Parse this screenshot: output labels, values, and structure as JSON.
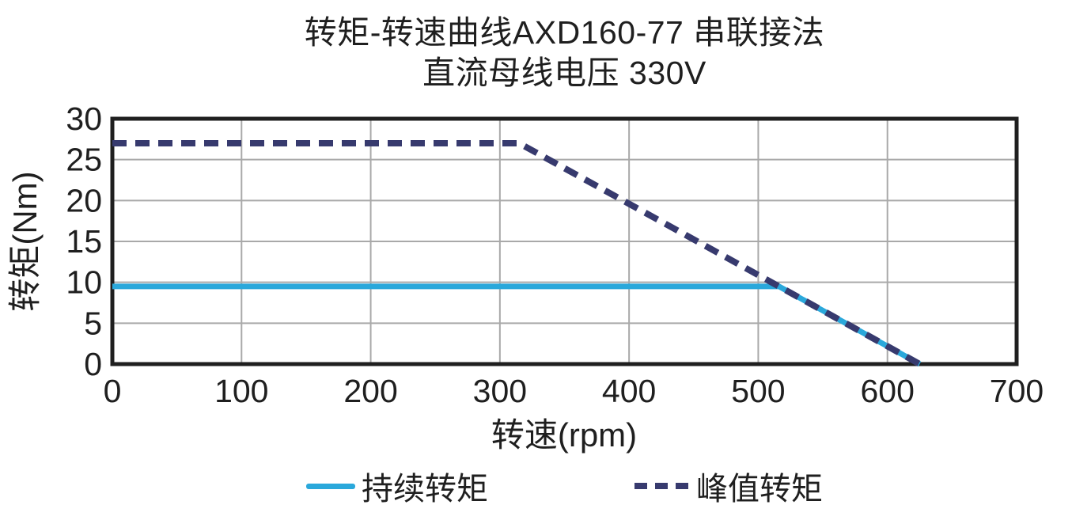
{
  "title": {
    "line1": "转矩-转速曲线AXD160-77 串联接法",
    "line2": "直流母线电压 330V"
  },
  "chart_data": {
    "type": "line",
    "title": "转矩-转速曲线AXD160-77 串联接法 直流母线电压 330V",
    "xlabel": "转速(rpm)",
    "ylabel": "转矩(Nm)",
    "xlim": [
      0,
      700
    ],
    "ylim": [
      0,
      30
    ],
    "x_ticks": [
      0,
      100,
      200,
      300,
      400,
      500,
      600,
      700
    ],
    "y_ticks": [
      0,
      5,
      10,
      15,
      20,
      25,
      30
    ],
    "grid": true,
    "legend_position": "bottom",
    "axis_color": "#1f1f1f",
    "grid_color": "#a9a9a9",
    "series": [
      {
        "id": "continuous-torque",
        "name": "持续转矩",
        "style": "solid",
        "color": "#2AA8DB",
        "width": 7,
        "points": [
          [
            0,
            9.5
          ],
          [
            516,
            9.5
          ],
          [
            625,
            0
          ]
        ]
      },
      {
        "id": "peak-torque",
        "name": "峰值转矩",
        "style": "dashed",
        "color": "#373A6E",
        "width": 8,
        "points": [
          [
            0,
            27
          ],
          [
            315,
            27
          ],
          [
            625,
            0
          ]
        ]
      }
    ]
  }
}
